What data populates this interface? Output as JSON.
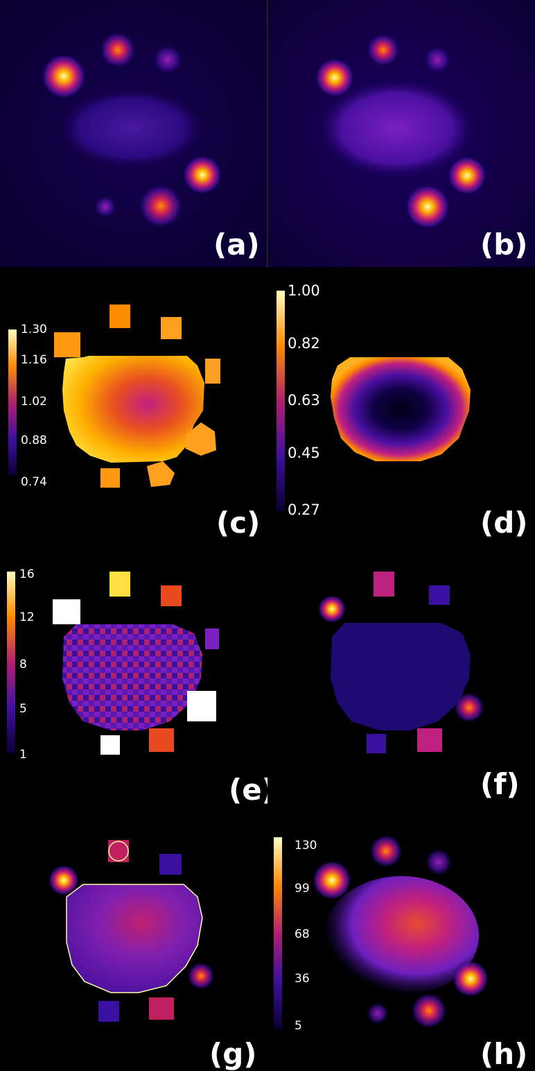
{
  "panels": [
    {
      "id": "a",
      "label": "(a)"
    },
    {
      "id": "b",
      "label": "(b)"
    },
    {
      "id": "c",
      "label": "(c)"
    },
    {
      "id": "d",
      "label": "(d)"
    },
    {
      "id": "e",
      "label": "(e)"
    },
    {
      "id": "f",
      "label": "(f)"
    },
    {
      "id": "g",
      "label": "(g)"
    },
    {
      "id": "h",
      "label": "(h)"
    }
  ],
  "colorbars": {
    "c": {
      "ticks": [
        "1.30",
        "1.16",
        "1.02",
        "0.88",
        "0.74"
      ]
    },
    "d": {
      "ticks": [
        "1.00",
        "0.82",
        "0.63",
        "0.45",
        "0.27"
      ]
    },
    "e": {
      "ticks": [
        "16",
        "12",
        "8",
        "5",
        "1"
      ]
    },
    "h": {
      "ticks": [
        "130",
        "99",
        "68",
        "36",
        "5"
      ]
    }
  },
  "colors": {
    "background": "#000000",
    "colormap": [
      "#0a0030",
      "#3a0a8a",
      "#7a10c0",
      "#c02080",
      "#e84a20",
      "#ff9a00",
      "#ffe040",
      "#ffffc0"
    ],
    "roi_outline": "#ffffa0"
  }
}
